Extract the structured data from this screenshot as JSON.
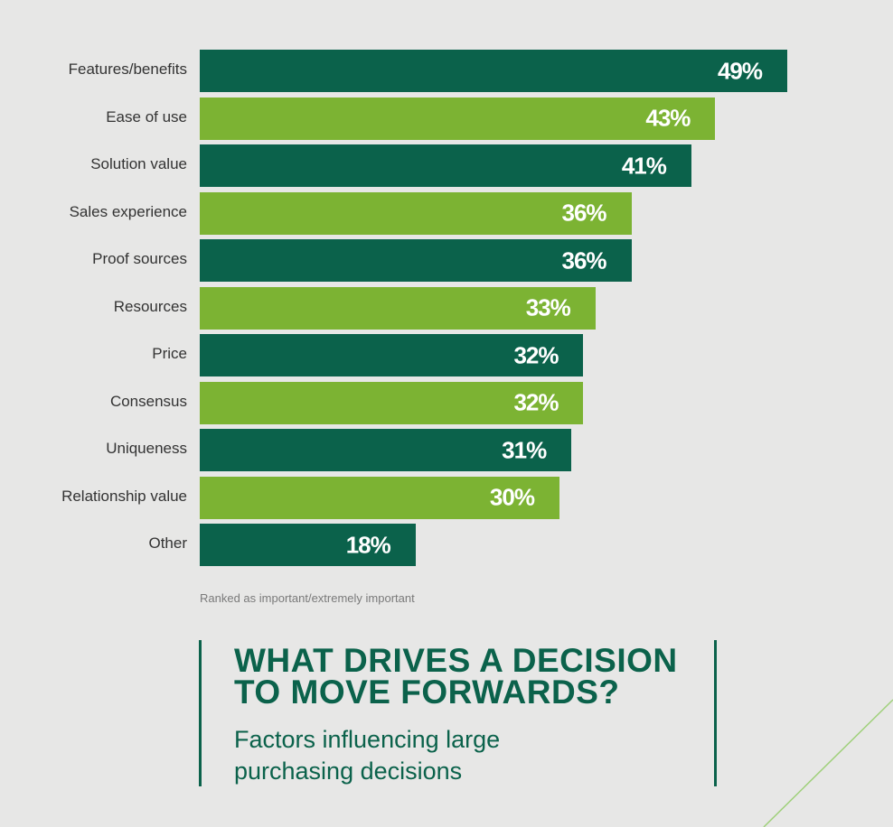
{
  "chart_data": {
    "type": "bar",
    "orientation": "horizontal",
    "title": "WHAT DRIVES A DECISION TO MOVE FORWARDS?",
    "subtitle": "Factors influencing large purchasing decisions",
    "note": "Ranked as important/extremely important",
    "categories": [
      "Features/benefits",
      "Ease of use",
      "Solution value",
      "Sales experience",
      "Proof sources",
      "Resources",
      "Price",
      "Consensus",
      "Uniqueness",
      "Relationship value",
      "Other"
    ],
    "values": [
      49,
      43,
      41,
      36,
      36,
      33,
      32,
      32,
      31,
      30,
      18
    ],
    "value_labels": [
      "49%",
      "43%",
      "41%",
      "36%",
      "36%",
      "33%",
      "32%",
      "32%",
      "31%",
      "30%",
      "18%"
    ],
    "xlim": [
      0,
      49
    ],
    "colors": [
      "#0b624b",
      "#7cb333"
    ],
    "grid": false
  }
}
